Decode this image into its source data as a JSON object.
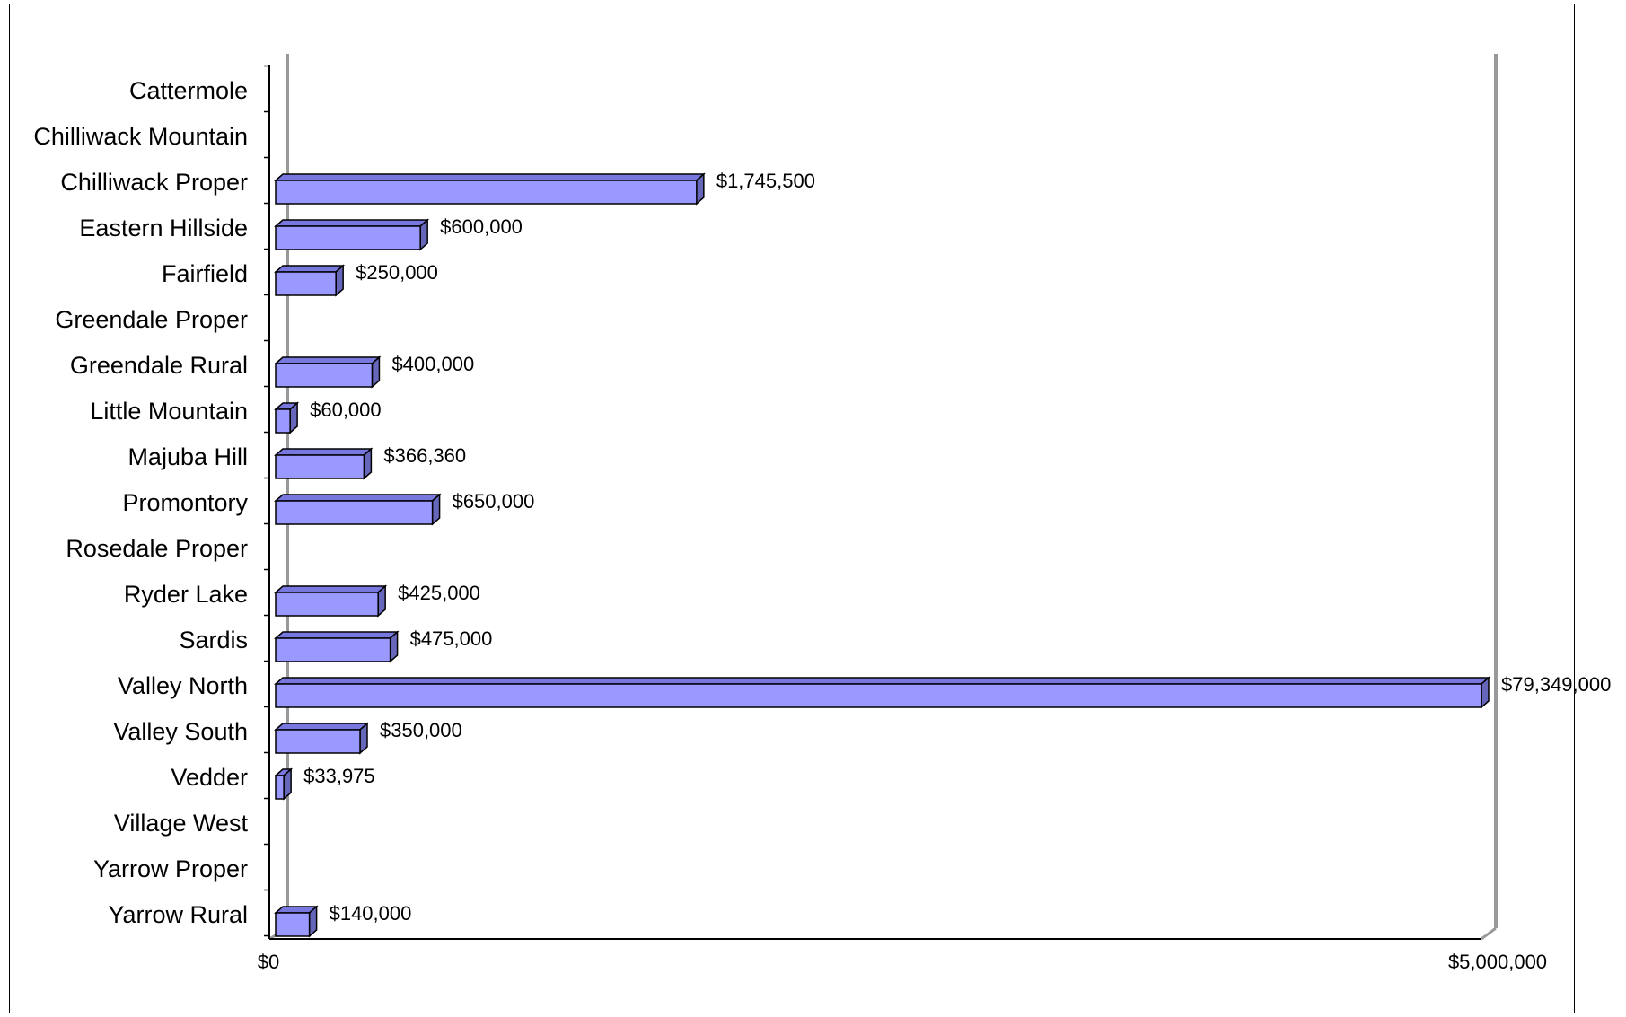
{
  "chart_data": {
    "type": "bar",
    "orientation": "horizontal",
    "style": "3d",
    "categories": [
      "Cattermole",
      "Chilliwack Mountain",
      "Chilliwack Proper",
      "Eastern Hillside",
      "Fairfield",
      "Greendale Proper",
      "Greendale Rural",
      "Little Mountain",
      "Majuba Hill",
      "Promontory",
      "Rosedale Proper",
      "Ryder Lake",
      "Sardis",
      "Valley North",
      "Valley South",
      "Vedder",
      "Village West",
      "Yarrow Proper",
      "Yarrow Rural"
    ],
    "values": [
      null,
      null,
      1745500,
      600000,
      250000,
      null,
      400000,
      60000,
      366360,
      650000,
      null,
      425000,
      475000,
      79349000,
      350000,
      33975,
      null,
      null,
      140000
    ],
    "data_labels": [
      "",
      "",
      "$1,745,500",
      "$600,000",
      "$250,000",
      "",
      "$400,000",
      "$60,000",
      "$366,360",
      "$650,000",
      "",
      "$425,000",
      "$475,000",
      "$79,349,000",
      "$350,000",
      "$33,975",
      "",
      "",
      "$140,000"
    ],
    "x_ticks": [
      "$0",
      "$5,000,000"
    ],
    "xlim": [
      0,
      5000000
    ],
    "bar_color": "#9999ff",
    "bar_edge_color": "#000000",
    "wall_color": "#999999",
    "title": "",
    "xlabel": "",
    "ylabel": "",
    "grid": false,
    "legend": "none"
  }
}
